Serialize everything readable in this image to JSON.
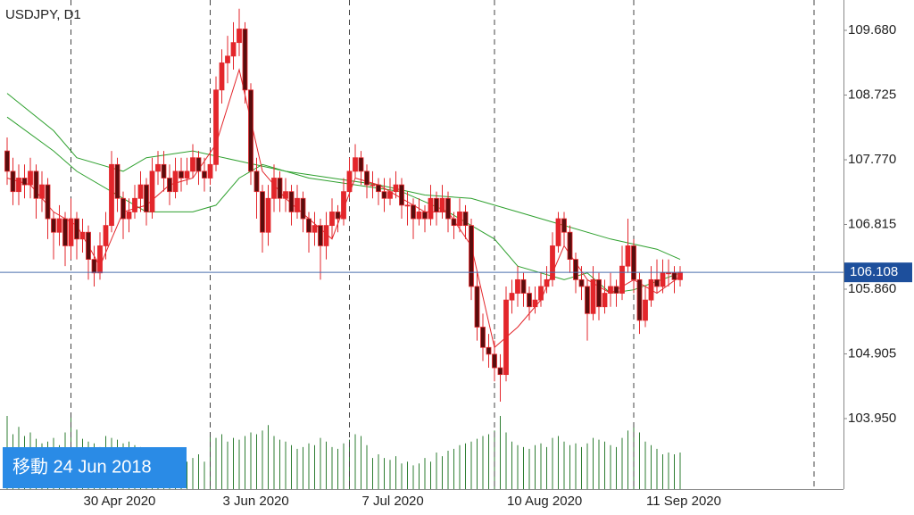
{
  "chart_data": {
    "type": "candlestick",
    "title": "USDJPY, D1",
    "badge": "移動 24 Jun 2018",
    "ylim": [
      102.909,
      110.128
    ],
    "yticks": [
      {
        "value": 109.68,
        "label": "109.680"
      },
      108.725,
      {
        "value": 107.77,
        "label": "107.770"
      },
      106.815,
      {
        "value": 105.86,
        "label": "105.860"
      },
      104.905,
      {
        "value": 103.95,
        "label": "103.950"
      }
    ],
    "xticks": [
      {
        "value": 11,
        "label": "30 Apr 2020"
      },
      {
        "value": 35,
        "label": "3 Jun 2020"
      },
      {
        "value": 59,
        "label": "7 Jul 2020"
      },
      {
        "value": 84,
        "label": "10 Aug 2020"
      },
      {
        "value": 108,
        "label": "11 Sep 2020"
      }
    ],
    "current_price": {
      "value": 106.108,
      "label": "106.108"
    },
    "up_color": "#e3262b",
    "down_color": "#5a0d0d",
    "volume_color": "#2e7d32",
    "ohlc": [
      [
        107.9,
        108.1,
        107.4,
        107.6
      ],
      [
        107.6,
        107.8,
        107.1,
        107.3
      ],
      [
        107.3,
        107.7,
        107.1,
        107.5
      ],
      [
        107.5,
        107.7,
        107.2,
        107.4
      ],
      [
        107.4,
        107.8,
        107.2,
        107.6
      ],
      [
        107.6,
        107.7,
        106.9,
        107.2
      ],
      [
        107.2,
        107.6,
        107.0,
        107.4
      ],
      [
        107.4,
        107.5,
        106.6,
        106.9
      ],
      [
        106.9,
        107.0,
        106.3,
        106.7
      ],
      [
        106.7,
        107.1,
        106.5,
        106.9
      ],
      [
        106.9,
        107.0,
        106.2,
        106.5
      ],
      [
        106.5,
        107.2,
        106.3,
        106.9
      ],
      [
        106.9,
        107.0,
        106.3,
        106.6
      ],
      [
        106.6,
        106.9,
        106.4,
        106.7
      ],
      [
        106.7,
        106.8,
        106.0,
        106.3
      ],
      [
        106.3,
        106.5,
        105.9,
        106.1
      ],
      [
        106.1,
        106.7,
        106.0,
        106.5
      ],
      [
        106.5,
        107.0,
        106.3,
        106.8
      ],
      [
        106.8,
        107.9,
        106.7,
        107.7
      ],
      [
        107.7,
        107.8,
        107.0,
        107.2
      ],
      [
        107.2,
        107.3,
        106.6,
        106.9
      ],
      [
        106.9,
        107.2,
        106.7,
        107.0
      ],
      [
        107.0,
        107.4,
        106.9,
        107.2
      ],
      [
        107.2,
        107.6,
        107.0,
        107.4
      ],
      [
        107.4,
        107.5,
        106.8,
        107.0
      ],
      [
        107.0,
        107.8,
        106.9,
        107.6
      ],
      [
        107.6,
        107.9,
        107.4,
        107.7
      ],
      [
        107.7,
        107.9,
        107.3,
        107.5
      ],
      [
        107.5,
        107.7,
        107.1,
        107.3
      ],
      [
        107.3,
        107.8,
        107.2,
        107.6
      ],
      [
        107.6,
        107.8,
        107.3,
        107.5
      ],
      [
        107.5,
        107.8,
        107.4,
        107.6
      ],
      [
        107.6,
        108.0,
        107.5,
        107.8
      ],
      [
        107.8,
        107.9,
        107.4,
        107.6
      ],
      [
        107.6,
        107.8,
        107.3,
        107.5
      ],
      [
        107.5,
        107.9,
        107.4,
        107.7
      ],
      [
        107.7,
        109.0,
        107.6,
        108.8
      ],
      [
        108.8,
        109.4,
        108.6,
        109.2
      ],
      [
        109.2,
        109.6,
        108.9,
        109.3
      ],
      [
        109.3,
        109.8,
        109.1,
        109.5
      ],
      [
        109.5,
        110.0,
        109.3,
        109.7
      ],
      [
        109.7,
        109.8,
        108.6,
        108.8
      ],
      [
        108.8,
        108.9,
        107.4,
        107.6
      ],
      [
        107.6,
        107.8,
        106.9,
        107.3
      ],
      [
        107.3,
        107.4,
        106.4,
        106.7
      ],
      [
        106.7,
        107.4,
        106.5,
        107.2
      ],
      [
        107.2,
        107.7,
        107.0,
        107.5
      ],
      [
        107.5,
        107.6,
        107.0,
        107.2
      ],
      [
        107.2,
        107.5,
        107.0,
        107.3
      ],
      [
        107.3,
        107.4,
        106.8,
        107.0
      ],
      [
        107.0,
        107.4,
        106.9,
        107.2
      ],
      [
        107.2,
        107.3,
        106.7,
        106.9
      ],
      [
        106.9,
        107.0,
        106.4,
        106.7
      ],
      [
        106.7,
        107.0,
        106.5,
        106.8
      ],
      [
        106.8,
        106.9,
        106.0,
        106.5
      ],
      [
        106.5,
        107.0,
        106.3,
        106.8
      ],
      [
        106.8,
        107.2,
        106.6,
        107.0
      ],
      [
        107.0,
        107.1,
        106.7,
        106.9
      ],
      [
        106.9,
        107.5,
        106.8,
        107.3
      ],
      [
        107.3,
        107.8,
        107.2,
        107.6
      ],
      [
        107.6,
        108.0,
        107.5,
        107.8
      ],
      [
        107.8,
        107.9,
        107.4,
        107.6
      ],
      [
        107.6,
        107.7,
        107.2,
        107.4
      ],
      [
        107.4,
        107.6,
        107.2,
        107.4
      ],
      [
        107.4,
        107.5,
        107.1,
        107.3
      ],
      [
        107.3,
        107.5,
        107.0,
        107.2
      ],
      [
        107.2,
        107.5,
        107.1,
        107.3
      ],
      [
        107.3,
        107.6,
        107.2,
        107.4
      ],
      [
        107.4,
        107.5,
        106.9,
        107.1
      ],
      [
        107.1,
        107.3,
        106.8,
        107.1
      ],
      [
        107.1,
        107.2,
        106.6,
        106.9
      ],
      [
        106.9,
        107.2,
        106.8,
        107.0
      ],
      [
        107.0,
        107.1,
        106.7,
        106.9
      ],
      [
        106.9,
        107.4,
        106.8,
        107.2
      ],
      [
        107.2,
        107.3,
        106.8,
        107.0
      ],
      [
        107.0,
        107.4,
        106.9,
        107.2
      ],
      [
        107.2,
        107.3,
        106.7,
        106.9
      ],
      [
        106.9,
        107.0,
        106.6,
        106.8
      ],
      [
        106.8,
        107.2,
        106.7,
        107.0
      ],
      [
        107.0,
        107.1,
        106.6,
        106.8
      ],
      [
        106.8,
        106.9,
        105.7,
        105.9
      ],
      [
        105.9,
        106.1,
        105.1,
        105.3
      ],
      [
        105.3,
        105.5,
        104.8,
        105.0
      ],
      [
        105.0,
        105.2,
        104.7,
        104.9
      ],
      [
        104.9,
        105.1,
        104.5,
        104.7
      ],
      [
        104.7,
        104.9,
        104.2,
        104.6
      ],
      [
        104.6,
        105.9,
        104.5,
        105.7
      ],
      [
        105.7,
        106.0,
        105.5,
        105.8
      ],
      [
        105.8,
        106.2,
        105.6,
        106.0
      ],
      [
        106.0,
        106.1,
        105.6,
        105.8
      ],
      [
        105.8,
        105.9,
        105.4,
        105.6
      ],
      [
        105.6,
        105.9,
        105.5,
        105.7
      ],
      [
        105.7,
        106.1,
        105.6,
        105.9
      ],
      [
        105.9,
        106.2,
        105.8,
        106.0
      ],
      [
        106.0,
        106.7,
        105.9,
        106.5
      ],
      [
        106.5,
        107.0,
        106.4,
        106.9
      ],
      [
        106.9,
        107.0,
        106.5,
        106.7
      ],
      [
        106.7,
        106.8,
        106.1,
        106.3
      ],
      [
        106.3,
        106.4,
        105.8,
        106.0
      ],
      [
        106.0,
        106.2,
        105.7,
        105.9
      ],
      [
        105.9,
        106.0,
        105.1,
        105.5
      ],
      [
        105.5,
        106.2,
        105.4,
        106.0
      ],
      [
        106.0,
        106.1,
        105.4,
        105.6
      ],
      [
        105.6,
        106.0,
        105.5,
        105.8
      ],
      [
        105.8,
        106.1,
        105.6,
        105.9
      ],
      [
        105.9,
        106.0,
        105.6,
        105.8
      ],
      [
        105.8,
        106.5,
        105.7,
        106.2
      ],
      [
        106.2,
        106.9,
        106.1,
        106.5
      ],
      [
        106.5,
        106.6,
        105.8,
        106.0
      ],
      [
        106.0,
        106.1,
        105.2,
        105.4
      ],
      [
        105.4,
        105.9,
        105.3,
        105.7
      ],
      [
        105.7,
        106.2,
        105.6,
        106.0
      ],
      [
        106.0,
        106.3,
        105.8,
        105.9
      ],
      [
        105.9,
        106.3,
        105.8,
        106.1
      ],
      [
        106.1,
        106.3,
        105.9,
        106.1
      ],
      [
        106.1,
        106.2,
        105.8,
        106.0
      ],
      [
        106.0,
        106.2,
        105.9,
        106.11
      ]
    ],
    "volume": [
      80,
      60,
      68,
      58,
      62,
      55,
      50,
      52,
      56,
      48,
      62,
      78,
      65,
      55,
      52,
      50,
      46,
      58,
      56,
      54,
      50,
      52,
      48,
      46,
      42,
      44,
      40,
      36,
      30,
      24,
      28,
      30,
      34,
      38,
      30,
      58,
      56,
      60,
      52,
      56,
      54,
      58,
      62,
      60,
      64,
      70,
      58,
      54,
      52,
      48,
      44,
      46,
      50,
      48,
      56,
      52,
      46,
      44,
      50,
      54,
      60,
      58,
      48,
      34,
      38,
      34,
      32,
      36,
      28,
      30,
      26,
      28,
      34,
      30,
      40,
      36,
      42,
      44,
      48,
      50,
      52,
      55,
      58,
      60,
      64,
      80,
      62,
      52,
      48,
      46,
      44,
      48,
      50,
      46,
      56,
      58,
      52,
      48,
      50,
      46,
      50,
      56,
      54,
      52,
      48,
      46,
      56,
      64,
      72,
      62,
      52,
      48,
      44,
      38,
      40,
      38,
      40
    ],
    "ma_lines": [
      {
        "color": "#2ea02e",
        "x": [
          0,
          8,
          12,
          20,
          24,
          32,
          40,
          48,
          56,
          64,
          72,
          80,
          88,
          96,
          104,
          112,
          116
        ],
        "values": [
          108.75,
          108.2,
          107.8,
          107.6,
          107.8,
          107.9,
          107.75,
          107.6,
          107.5,
          107.4,
          107.25,
          107.2,
          107.0,
          106.8,
          106.6,
          106.45,
          106.3
        ]
      },
      {
        "color": "#2ea02e",
        "x": [
          0,
          8,
          12,
          20,
          24,
          32,
          36,
          40,
          44,
          52,
          60,
          68,
          76,
          84,
          88,
          96,
          100,
          104,
          108,
          116
        ],
        "values": [
          108.4,
          107.9,
          107.6,
          107.2,
          107.0,
          107.0,
          107.1,
          107.5,
          107.7,
          107.5,
          107.4,
          107.3,
          107.0,
          106.6,
          106.2,
          106.0,
          106.1,
          105.8,
          105.85,
          106.1
        ]
      },
      {
        "color": "#e3262b",
        "x": [
          0,
          4,
          8,
          12,
          16,
          20,
          24,
          28,
          32,
          36,
          40,
          44,
          48,
          52,
          56,
          60,
          64,
          68,
          72,
          76,
          80,
          84,
          88,
          92,
          96,
          100,
          104,
          108,
          112,
          116
        ],
        "values": [
          107.5,
          107.4,
          107.0,
          106.8,
          106.2,
          107.0,
          107.1,
          107.4,
          107.5,
          108.0,
          109.1,
          107.6,
          107.2,
          106.9,
          106.6,
          107.5,
          107.4,
          107.2,
          107.0,
          107.0,
          106.5,
          105.0,
          105.3,
          105.7,
          106.5,
          106.0,
          105.8,
          106.0,
          105.8,
          106.05
        ]
      }
    ]
  }
}
